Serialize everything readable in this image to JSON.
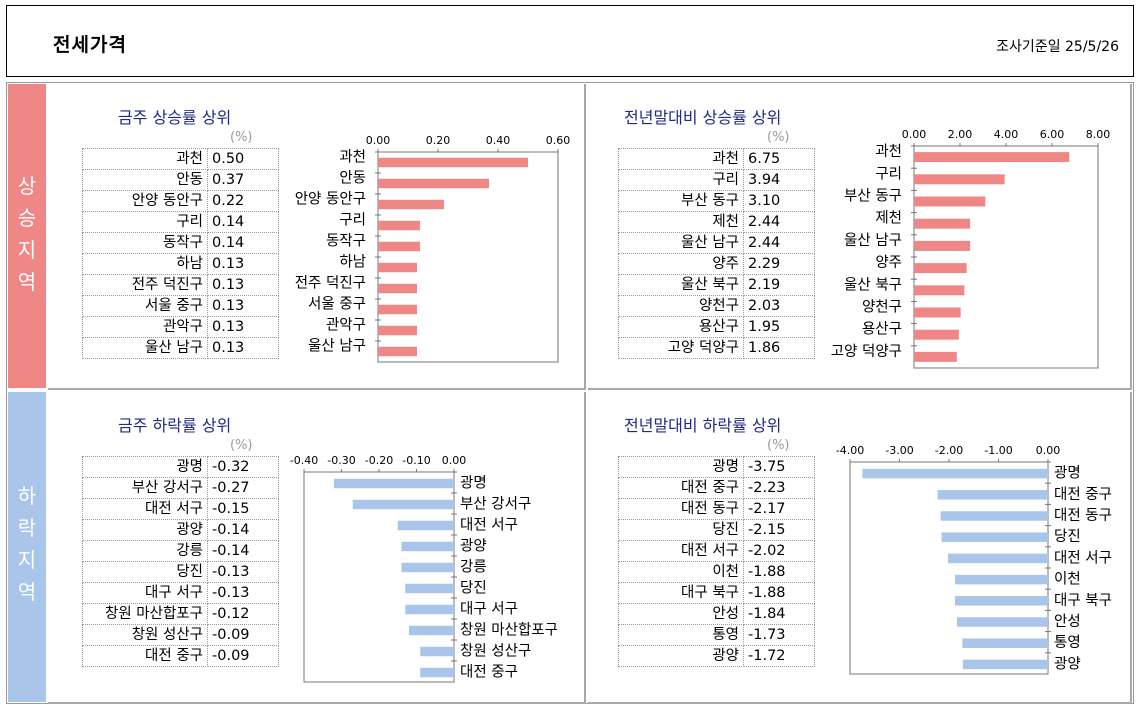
{
  "header": {
    "title": "전세가격",
    "date": "조사기준일 25/5/26"
  },
  "side": {
    "up": [
      "상",
      "승",
      "지",
      "역"
    ],
    "down": [
      "하",
      "락",
      "지",
      "역"
    ]
  },
  "colors": {
    "up_bar": "#ef8787",
    "down_bar": "#a9c6ea",
    "title": "#1f2a85"
  },
  "panels": [
    {
      "title": "금주 상승률 상위",
      "unit": "(%)",
      "rows": [
        {
          "name": "과천",
          "value": "0.50"
        },
        {
          "name": "안동",
          "value": "0.37"
        },
        {
          "name": "안양 동안구",
          "value": "0.22"
        },
        {
          "name": "구리",
          "value": "0.14"
        },
        {
          "name": "동작구",
          "value": "0.14"
        },
        {
          "name": "하남",
          "value": "0.13"
        },
        {
          "name": "전주 덕진구",
          "value": "0.13"
        },
        {
          "name": "서울 중구",
          "value": "0.13"
        },
        {
          "name": "관악구",
          "value": "0.13"
        },
        {
          "name": "울산 남구",
          "value": "0.13"
        }
      ]
    },
    {
      "title": "전년말대비 상승률 상위",
      "unit": "(%)",
      "rows": [
        {
          "name": "과천",
          "value": "6.75"
        },
        {
          "name": "구리",
          "value": "3.94"
        },
        {
          "name": "부산 동구",
          "value": "3.10"
        },
        {
          "name": "제천",
          "value": "2.44"
        },
        {
          "name": "울산 남구",
          "value": "2.44"
        },
        {
          "name": "양주",
          "value": "2.29"
        },
        {
          "name": "울산 북구",
          "value": "2.19"
        },
        {
          "name": "양천구",
          "value": "2.03"
        },
        {
          "name": "용산구",
          "value": "1.95"
        },
        {
          "name": "고양 덕양구",
          "value": "1.86"
        }
      ]
    },
    {
      "title": "금주 하락률 상위",
      "unit": "(%)",
      "rows": [
        {
          "name": "광명",
          "value": "-0.32"
        },
        {
          "name": "부산 강서구",
          "value": "-0.27"
        },
        {
          "name": "대전 서구",
          "value": "-0.15"
        },
        {
          "name": "광양",
          "value": "-0.14"
        },
        {
          "name": "강릉",
          "value": "-0.14"
        },
        {
          "name": "당진",
          "value": "-0.13"
        },
        {
          "name": "대구 서구",
          "value": "-0.13"
        },
        {
          "name": "창원 마산합포구",
          "value": "-0.12"
        },
        {
          "name": "창원 성산구",
          "value": "-0.09"
        },
        {
          "name": "대전 중구",
          "value": "-0.09"
        }
      ]
    },
    {
      "title": "전년말대비 하락률 상위",
      "unit": "(%)",
      "rows": [
        {
          "name": "광명",
          "value": "-3.75"
        },
        {
          "name": "대전 중구",
          "value": "-2.23"
        },
        {
          "name": "대전 동구",
          "value": "-2.17"
        },
        {
          "name": "당진",
          "value": "-2.15"
        },
        {
          "name": "대전 서구",
          "value": "-2.02"
        },
        {
          "name": "이천",
          "value": "-1.88"
        },
        {
          "name": "대구 북구",
          "value": "-1.88"
        },
        {
          "name": "안성",
          "value": "-1.84"
        },
        {
          "name": "통영",
          "value": "-1.73"
        },
        {
          "name": "광양",
          "value": "-1.72"
        }
      ]
    }
  ],
  "chart_data": [
    {
      "type": "bar",
      "orientation": "horizontal",
      "title": "금주 상승률 상위",
      "categories": [
        "과천",
        "안동",
        "안양 동안구",
        "구리",
        "동작구",
        "하남",
        "전주 덕진구",
        "서울 중구",
        "관악구",
        "울산 남구"
      ],
      "values": [
        0.5,
        0.37,
        0.22,
        0.14,
        0.14,
        0.13,
        0.13,
        0.13,
        0.13,
        0.13
      ],
      "xlim": [
        0,
        0.6
      ],
      "ticks": [
        0,
        0.2,
        0.4,
        0.6
      ],
      "tick_labels": [
        "0.00",
        "0.20",
        "0.40",
        "0.60"
      ],
      "color": "#ef8787",
      "axis": "top",
      "labels_side": "left"
    },
    {
      "type": "bar",
      "orientation": "horizontal",
      "title": "전년말대비 상승률 상위",
      "categories": [
        "과천",
        "구리",
        "부산 동구",
        "제천",
        "울산 남구",
        "양주",
        "울산 북구",
        "양천구",
        "용산구",
        "고양 덕양구"
      ],
      "values": [
        6.75,
        3.94,
        3.1,
        2.44,
        2.44,
        2.29,
        2.19,
        2.03,
        1.95,
        1.86
      ],
      "xlim": [
        0,
        8
      ],
      "ticks": [
        0,
        2,
        4,
        6,
        8
      ],
      "tick_labels": [
        "0.00",
        "2.00",
        "4.00",
        "6.00",
        "8.00"
      ],
      "color": "#ef8787",
      "axis": "top",
      "labels_side": "left"
    },
    {
      "type": "bar",
      "orientation": "horizontal",
      "title": "금주 하락률 상위",
      "categories": [
        "광명",
        "부산 강서구",
        "대전 서구",
        "광양",
        "강릉",
        "당진",
        "대구 서구",
        "창원 마산합포구",
        "창원 성산구",
        "대전 중구"
      ],
      "values": [
        -0.32,
        -0.27,
        -0.15,
        -0.14,
        -0.14,
        -0.13,
        -0.13,
        -0.12,
        -0.09,
        -0.09
      ],
      "xlim": [
        -0.4,
        0
      ],
      "ticks": [
        -0.4,
        -0.3,
        -0.2,
        -0.1,
        0
      ],
      "tick_labels": [
        "-0.40",
        "-0.30",
        "-0.20",
        "-0.10",
        "0.00"
      ],
      "color": "#a9c6ea",
      "axis": "top",
      "labels_side": "right"
    },
    {
      "type": "bar",
      "orientation": "horizontal",
      "title": "전년말대비 하락률 상위",
      "categories": [
        "광명",
        "대전 중구",
        "대전 동구",
        "당진",
        "대전 서구",
        "이천",
        "대구 북구",
        "안성",
        "통영",
        "광양"
      ],
      "values": [
        -3.75,
        -2.23,
        -2.17,
        -2.15,
        -2.02,
        -1.88,
        -1.88,
        -1.84,
        -1.73,
        -1.72
      ],
      "xlim": [
        -4,
        0
      ],
      "ticks": [
        -4,
        -3,
        -2,
        -1,
        0
      ],
      "tick_labels": [
        "-4.00",
        "-3.00",
        "-2.00",
        "-1.00",
        "0.00"
      ],
      "color": "#a9c6ea",
      "axis": "top",
      "labels_side": "right"
    }
  ]
}
